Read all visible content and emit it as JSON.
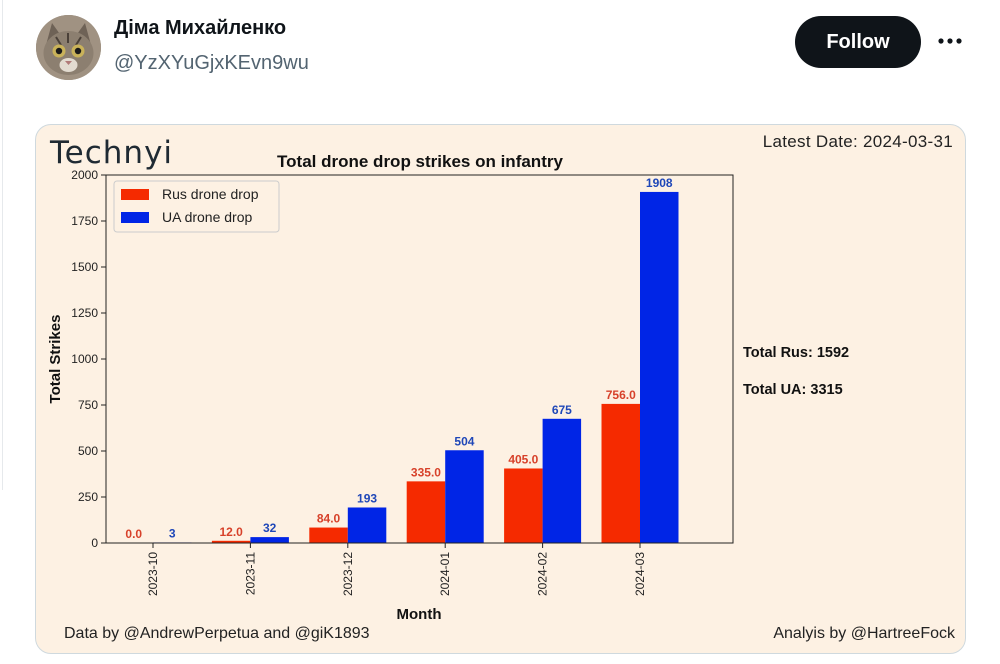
{
  "tweet": {
    "display_name": "Діма Михайленко",
    "handle": "@YzXYuGjxKEvn9wu",
    "follow_label": "Follow",
    "more_icon": "more-horizontal-icon",
    "avatar_icon": "cat-avatar"
  },
  "media": {
    "logo_text": "Technyi",
    "latest_date": "Latest Date: 2024-03-31",
    "total_rus": "Total Rus: 1592",
    "total_ua": "Total UA: 3315",
    "credit_left": "Data by @AndrewPerpetua and @giK1893",
    "credit_right": "Analyis by @HartreeFock"
  },
  "chart_data": {
    "type": "bar",
    "title": "Total drone drop strikes on infantry",
    "xlabel": "Month",
    "ylabel": "Total Strikes",
    "ylim": [
      0,
      2000
    ],
    "yticks": [
      0,
      250,
      500,
      750,
      1000,
      1250,
      1500,
      1750,
      2000
    ],
    "categories": [
      "2023-10",
      "2023-11",
      "2023-12",
      "2024-01",
      "2024-02",
      "2024-03"
    ],
    "legend_position": "top-left",
    "series": [
      {
        "name": "Rus drone drop",
        "color": "#f52a00",
        "label_color": "#d7412a",
        "values": [
          0,
          12,
          84,
          335,
          405,
          756
        ],
        "labels": [
          "0.0",
          "12.0",
          "84.0",
          "335.0",
          "405.0",
          "756.0"
        ]
      },
      {
        "name": "UA drone drop",
        "color": "#0025e6",
        "label_color": "#1f47b8",
        "values": [
          3,
          32,
          193,
          504,
          675,
          1908
        ],
        "labels": [
          "3",
          "32",
          "193",
          "504",
          "675",
          "1908"
        ]
      }
    ]
  }
}
